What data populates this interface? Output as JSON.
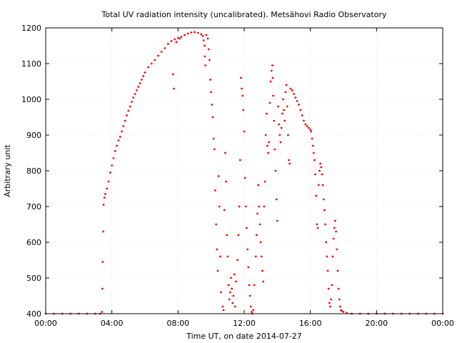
{
  "chart_data": {
    "type": "scatter",
    "title": "Total UV radiation intensity (uncalibrated). Metsähovi Radio Observatory",
    "xlabel": "Time UT, on date 2014-07-27",
    "ylabel": "Arbitrary unit",
    "x_unit": "hours UT",
    "xlim": [
      0,
      24
    ],
    "ylim": [
      400,
      1200
    ],
    "grid": true,
    "color": "#ff0000",
    "x_ticks": [
      {
        "value": 0,
        "label": "00:00"
      },
      {
        "value": 4,
        "label": "04:00"
      },
      {
        "value": 8,
        "label": "08:00"
      },
      {
        "value": 12,
        "label": "12:00"
      },
      {
        "value": 16,
        "label": "16:00"
      },
      {
        "value": 20,
        "label": "20:00"
      },
      {
        "value": 24,
        "label": "00:00"
      }
    ],
    "y_ticks": [
      {
        "value": 400,
        "label": "400"
      },
      {
        "value": 500,
        "label": "500"
      },
      {
        "value": 600,
        "label": "600"
      },
      {
        "value": 700,
        "label": "700"
      },
      {
        "value": 800,
        "label": "800"
      },
      {
        "value": 900,
        "label": "900"
      },
      {
        "value": 1000,
        "label": "1000"
      },
      {
        "value": 1100,
        "label": "1100"
      },
      {
        "value": 1200,
        "label": "1200"
      }
    ],
    "series": [
      {
        "points": [
          [
            0.0,
            400
          ],
          [
            0.5,
            400
          ],
          [
            1.0,
            400
          ],
          [
            1.5,
            400
          ],
          [
            2.0,
            400
          ],
          [
            2.5,
            400
          ],
          [
            3.0,
            400
          ],
          [
            3.3,
            400
          ],
          [
            3.4,
            405
          ],
          [
            3.42,
            470
          ],
          [
            3.45,
            545
          ],
          [
            3.48,
            630
          ],
          [
            3.5,
            705
          ],
          [
            3.55,
            725
          ],
          [
            3.6,
            735
          ],
          [
            3.7,
            750
          ],
          [
            3.8,
            770
          ],
          [
            3.9,
            795
          ],
          [
            4.0,
            815
          ],
          [
            4.1,
            835
          ],
          [
            4.2,
            855
          ],
          [
            4.3,
            870
          ],
          [
            4.4,
            885
          ],
          [
            4.5,
            895
          ],
          [
            4.6,
            910
          ],
          [
            4.7,
            925
          ],
          [
            4.8,
            940
          ],
          [
            4.9,
            955
          ],
          [
            5.0,
            968
          ],
          [
            5.1,
            980
          ],
          [
            5.2,
            993
          ],
          [
            5.3,
            1005
          ],
          [
            5.4,
            1015
          ],
          [
            5.5,
            1025
          ],
          [
            5.6,
            1035
          ],
          [
            5.7,
            1045
          ],
          [
            5.8,
            1055
          ],
          [
            5.9,
            1065
          ],
          [
            6.0,
            1075
          ],
          [
            6.2,
            1090
          ],
          [
            6.4,
            1100
          ],
          [
            6.6,
            1110
          ],
          [
            6.8,
            1122
          ],
          [
            7.0,
            1133
          ],
          [
            7.2,
            1143
          ],
          [
            7.4,
            1155
          ],
          [
            7.6,
            1163
          ],
          [
            7.8,
            1168
          ],
          [
            8.0,
            1172
          ],
          [
            8.2,
            1175
          ],
          [
            8.4,
            1180
          ],
          [
            8.6,
            1184
          ],
          [
            8.8,
            1187
          ],
          [
            9.0,
            1188
          ],
          [
            9.2,
            1186
          ],
          [
            9.4,
            1182
          ],
          [
            9.5,
            1177
          ],
          [
            7.7,
            1070
          ],
          [
            7.75,
            1030
          ],
          [
            7.9,
            1160
          ],
          [
            8.1,
            1170
          ],
          [
            9.55,
            1165
          ],
          [
            9.6,
            1150
          ],
          [
            9.62,
            1120
          ],
          [
            9.65,
            1095
          ],
          [
            9.7,
            1180
          ],
          [
            9.8,
            1170
          ],
          [
            9.85,
            1140
          ],
          [
            9.9,
            1110
          ],
          [
            9.95,
            1055
          ],
          [
            10.0,
            1020
          ],
          [
            10.05,
            985
          ],
          [
            10.1,
            950
          ],
          [
            10.15,
            890
          ],
          [
            10.2,
            860
          ],
          [
            10.25,
            745
          ],
          [
            10.3,
            650
          ],
          [
            10.35,
            580
          ],
          [
            10.4,
            520
          ],
          [
            10.45,
            785
          ],
          [
            10.5,
            700
          ],
          [
            10.55,
            560
          ],
          [
            10.6,
            460
          ],
          [
            10.7,
            420
          ],
          [
            10.75,
            410
          ],
          [
            10.8,
            690
          ],
          [
            10.85,
            850
          ],
          [
            10.9,
            770
          ],
          [
            10.95,
            620
          ],
          [
            11.0,
            560
          ],
          [
            11.05,
            480
          ],
          [
            11.1,
            440
          ],
          [
            11.15,
            460
          ],
          [
            11.2,
            500
          ],
          [
            11.25,
            470
          ],
          [
            11.3,
            430
          ],
          [
            11.35,
            450
          ],
          [
            11.4,
            510
          ],
          [
            11.45,
            420
          ],
          [
            11.5,
            490
          ],
          [
            11.6,
            550
          ],
          [
            11.65,
            620
          ],
          [
            11.7,
            700
          ],
          [
            11.75,
            830
          ],
          [
            11.8,
            1060
          ],
          [
            11.85,
            1030
          ],
          [
            11.9,
            1010
          ],
          [
            11.95,
            970
          ],
          [
            12.0,
            910
          ],
          [
            12.05,
            780
          ],
          [
            12.1,
            700
          ],
          [
            12.15,
            640
          ],
          [
            12.2,
            580
          ],
          [
            12.25,
            530
          ],
          [
            12.3,
            480
          ],
          [
            12.35,
            450
          ],
          [
            12.4,
            420
          ],
          [
            12.45,
            405
          ],
          [
            12.5,
            400
          ],
          [
            12.55,
            410
          ],
          [
            12.6,
            480
          ],
          [
            12.7,
            560
          ],
          [
            12.75,
            620
          ],
          [
            12.8,
            680
          ],
          [
            12.85,
            760
          ],
          [
            12.9,
            700
          ],
          [
            12.95,
            650
          ],
          [
            13.0,
            600
          ],
          [
            13.05,
            560
          ],
          [
            13.1,
            520
          ],
          [
            13.15,
            490
          ],
          [
            13.2,
            700
          ],
          [
            13.25,
            770
          ],
          [
            13.3,
            900
          ],
          [
            13.35,
            960
          ],
          [
            13.4,
            870
          ],
          [
            13.45,
            850
          ],
          [
            13.5,
            880
          ],
          [
            13.55,
            990
          ],
          [
            13.6,
            1050
          ],
          [
            13.65,
            1080
          ],
          [
            13.7,
            1095
          ],
          [
            13.72,
            1060
          ],
          [
            13.75,
            1010
          ],
          [
            13.8,
            940
          ],
          [
            13.85,
            860
          ],
          [
            13.9,
            800
          ],
          [
            13.95,
            720
          ],
          [
            14.0,
            660
          ],
          [
            14.05,
            980
          ],
          [
            14.1,
            930
          ],
          [
            14.15,
            900
          ],
          [
            14.2,
            880
          ],
          [
            14.25,
            920
          ],
          [
            14.3,
            960
          ],
          [
            14.35,
            1000
          ],
          [
            14.4,
            970
          ],
          [
            14.45,
            940
          ],
          [
            14.5,
            1020
          ],
          [
            14.55,
            1040
          ],
          [
            14.6,
            980
          ],
          [
            14.65,
            900
          ],
          [
            14.7,
            830
          ],
          [
            14.75,
            820
          ],
          [
            14.8,
            1030
          ],
          [
            14.9,
            1025
          ],
          [
            15.0,
            1015
          ],
          [
            15.1,
            1005
          ],
          [
            15.2,
            995
          ],
          [
            15.3,
            985
          ],
          [
            15.4,
            970
          ],
          [
            15.5,
            955
          ],
          [
            15.6,
            940
          ],
          [
            15.7,
            930
          ],
          [
            15.8,
            925
          ],
          [
            15.9,
            920
          ],
          [
            16.0,
            915
          ],
          [
            16.05,
            910
          ],
          [
            16.1,
            890
          ],
          [
            16.15,
            870
          ],
          [
            16.2,
            850
          ],
          [
            16.25,
            830
          ],
          [
            16.3,
            790
          ],
          [
            16.35,
            730
          ],
          [
            16.4,
            650
          ],
          [
            16.45,
            640
          ],
          [
            16.5,
            760
          ],
          [
            16.55,
            800
          ],
          [
            16.6,
            820
          ],
          [
            16.65,
            810
          ],
          [
            16.7,
            790
          ],
          [
            16.75,
            760
          ],
          [
            16.8,
            720
          ],
          [
            16.85,
            690
          ],
          [
            16.9,
            650
          ],
          [
            16.95,
            600
          ],
          [
            17.0,
            560
          ],
          [
            17.05,
            520
          ],
          [
            17.1,
            470
          ],
          [
            17.15,
            430
          ],
          [
            17.2,
            420
          ],
          [
            17.25,
            440
          ],
          [
            17.3,
            480
          ],
          [
            17.35,
            560
          ],
          [
            17.4,
            610
          ],
          [
            17.45,
            640
          ],
          [
            17.5,
            660
          ],
          [
            17.55,
            630
          ],
          [
            17.6,
            580
          ],
          [
            17.65,
            520
          ],
          [
            17.7,
            470
          ],
          [
            17.75,
            440
          ],
          [
            17.8,
            420
          ],
          [
            17.85,
            410
          ],
          [
            17.9,
            408
          ],
          [
            18.0,
            405
          ],
          [
            18.2,
            402
          ],
          [
            18.5,
            400
          ],
          [
            19.0,
            400
          ],
          [
            19.5,
            400
          ],
          [
            20.0,
            400
          ],
          [
            20.5,
            400
          ],
          [
            21.0,
            400
          ],
          [
            21.5,
            400
          ],
          [
            22.0,
            400
          ],
          [
            22.5,
            400
          ],
          [
            23.0,
            400
          ],
          [
            23.5,
            400
          ],
          [
            24.0,
            400
          ]
        ]
      }
    ]
  }
}
